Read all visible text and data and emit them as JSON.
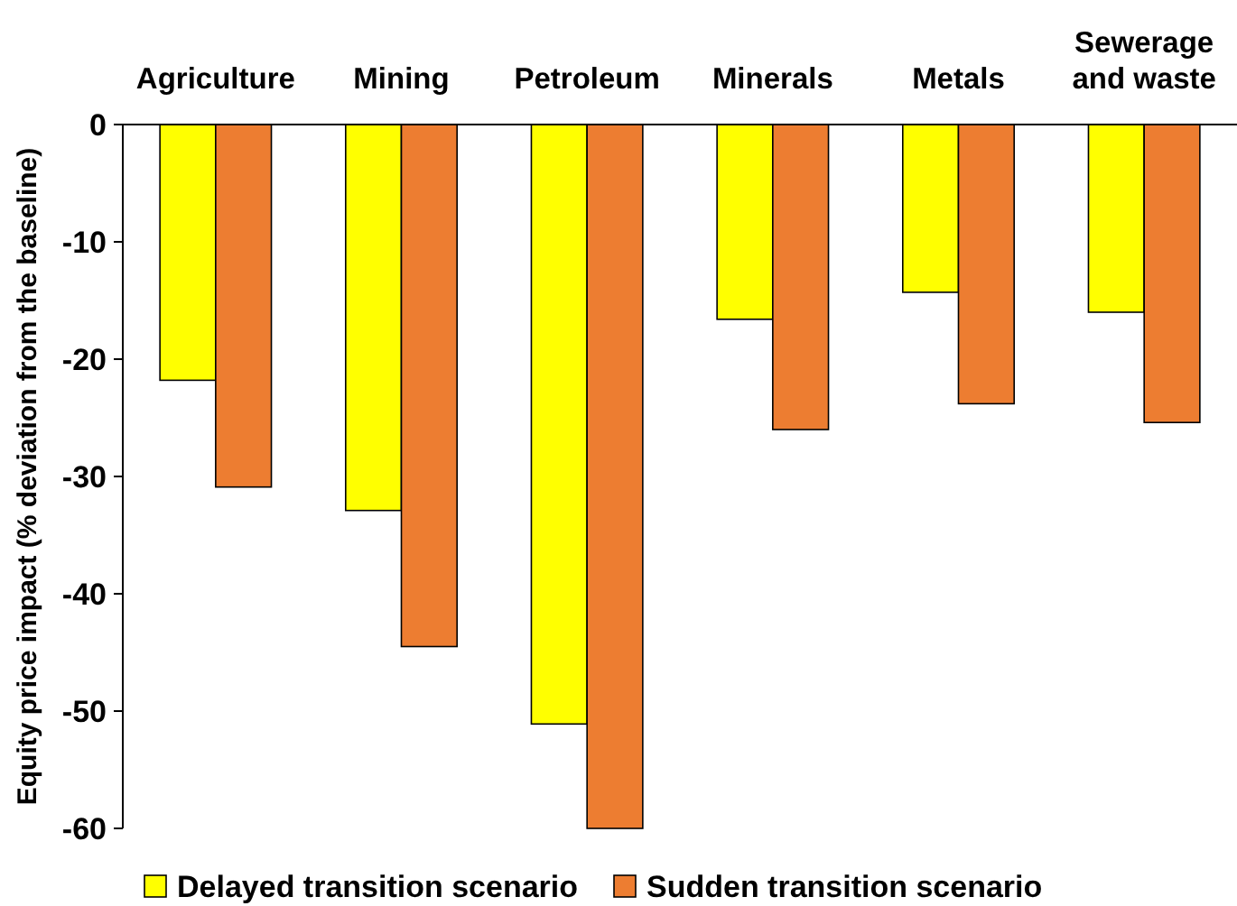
{
  "chart_data": {
    "type": "bar",
    "ylabel": "Equity price impact (% deviation from the baseline)",
    "categories": [
      "Agriculture",
      "Mining",
      "Petroleum",
      "Minerals",
      "Metals",
      "Sewerage and waste"
    ],
    "series": [
      {
        "name": "Delayed transition scenario",
        "color": "#ffff00",
        "values": [
          -21.8,
          -32.9,
          -51.1,
          -16.6,
          -14.3,
          -16
        ]
      },
      {
        "name": "Sudden transition scenario",
        "color": "#ed7d31",
        "values": [
          -30.9,
          -44.5,
          -60,
          -26,
          -23.8,
          -25.4
        ]
      }
    ],
    "ylim": [
      -60,
      0
    ],
    "yticks": [
      0,
      -10,
      -20,
      -30,
      -40,
      -50,
      -60
    ],
    "grid": false,
    "legend": "bottom"
  }
}
